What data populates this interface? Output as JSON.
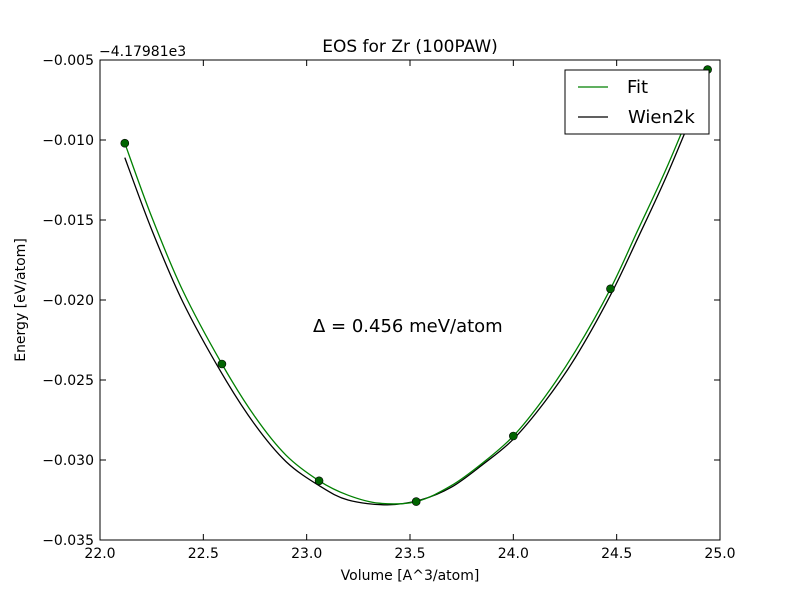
{
  "chart_data": {
    "type": "line",
    "title": "EOS for Zr (100PAW)",
    "xlabel": "Volume [A^3/atom]",
    "ylabel": "Energy [eV/atom]",
    "offset_label": "−4.17981e3",
    "annotation": "Δ = 0.456 meV/atom",
    "xlim": [
      22.0,
      25.0
    ],
    "ylim": [
      -0.035,
      -0.005
    ],
    "x_ticks": [
      22.0,
      22.5,
      23.0,
      23.5,
      24.0,
      24.5,
      25.0
    ],
    "x_tick_labels": [
      "22.0",
      "22.5",
      "23.0",
      "23.5",
      "24.0",
      "24.5",
      "25.0"
    ],
    "y_ticks": [
      -0.035,
      -0.03,
      -0.025,
      -0.02,
      -0.015,
      -0.01,
      -0.005
    ],
    "y_tick_labels": [
      "−0.035",
      "−0.030",
      "−0.025",
      "−0.020",
      "−0.015",
      "−0.010",
      "−0.005"
    ],
    "grid": false,
    "legend_position": "top-right",
    "legend": [
      "Fit",
      "Wien2k"
    ],
    "colors": {
      "fit": "#008000",
      "wien2k": "#000000",
      "points": "#006400"
    },
    "points": {
      "x": [
        22.12,
        22.59,
        23.06,
        23.53,
        24.0,
        24.47,
        24.94
      ],
      "y": [
        -0.0102,
        -0.024,
        -0.0313,
        -0.0326,
        -0.0285,
        -0.0193,
        -0.0056
      ]
    },
    "series": [
      {
        "name": "Fit",
        "x": [
          22.12,
          22.25,
          22.4,
          22.59,
          22.75,
          22.9,
          23.06,
          23.2,
          23.35,
          23.53,
          23.7,
          23.85,
          24.0,
          24.15,
          24.3,
          24.47,
          24.6,
          24.75,
          24.94
        ],
        "y": [
          -0.0102,
          -0.0148,
          -0.0194,
          -0.024,
          -0.0273,
          -0.0297,
          -0.0313,
          -0.0322,
          -0.0327,
          -0.0326,
          -0.0316,
          -0.0302,
          -0.0285,
          -0.0261,
          -0.0232,
          -0.0193,
          -0.0157,
          -0.0115,
          -0.0056
        ]
      },
      {
        "name": "Wien2k",
        "x": [
          22.12,
          22.25,
          22.4,
          22.59,
          22.75,
          22.9,
          23.06,
          23.2,
          23.39,
          23.55,
          23.7,
          23.85,
          24.0,
          24.15,
          24.3,
          24.47,
          24.6,
          24.75,
          24.94
        ],
        "y": [
          -0.0111,
          -0.0156,
          -0.0201,
          -0.0246,
          -0.0278,
          -0.0301,
          -0.0316,
          -0.0325,
          -0.0328,
          -0.0325,
          -0.0317,
          -0.0303,
          -0.0287,
          -0.0264,
          -0.0236,
          -0.0197,
          -0.0162,
          -0.012,
          -0.0061
        ]
      }
    ]
  }
}
